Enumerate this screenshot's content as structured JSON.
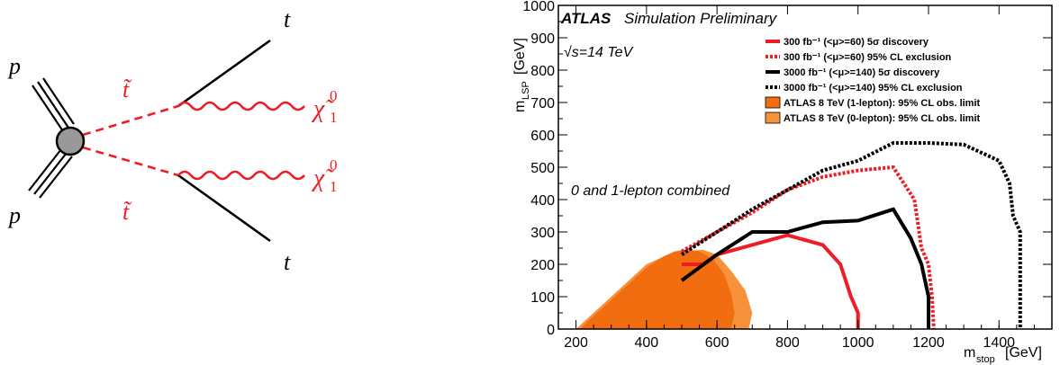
{
  "feynman": {
    "labels": {
      "p_top": "p",
      "p_bottom": "p",
      "stop_top": "t̃",
      "stop_bottom": "t̃",
      "top_top": "t",
      "top_bottom": "t",
      "chi": "χ̃",
      "chi_sup": "0",
      "chi_sub": "1"
    },
    "colors": {
      "black": "#000000",
      "red": "#ee1c24",
      "blob": "#999999"
    }
  },
  "chart_data": {
    "type": "line",
    "title": "ATLAS",
    "title_suffix": "Simulation Preliminary",
    "energy_label": "√s=14 TeV",
    "annotation": "0 and 1-lepton combined",
    "xlabel": "m",
    "xlabel_sub": "stop",
    "xlabel_unit": "[GeV]",
    "ylabel": "m",
    "ylabel_sub": "LSP",
    "ylabel_unit": "[GeV]",
    "xlim": [
      150,
      1550
    ],
    "ylim": [
      0,
      1000
    ],
    "x_ticks": [
      200,
      400,
      600,
      800,
      1000,
      1200,
      1400
    ],
    "y_ticks": [
      0,
      100,
      200,
      300,
      400,
      500,
      600,
      700,
      800,
      900,
      1000
    ],
    "legend_position": "top-right",
    "legend": [
      "300 fb⁻¹ (<μ>=60) 5σ discovery",
      "300 fb⁻¹ (<μ>=60) 95% CL exclusion",
      "3000 fb⁻¹ (<μ>=140) 5σ discovery",
      "3000 fb⁻¹ (<μ>=140) 95% CL exclusion",
      "ATLAS 8 TeV (1-lepton): 95% CL obs. limit",
      "ATLAS 8 TeV (0-lepton): 95% CL obs. limit"
    ],
    "series": [
      {
        "name": "300 fb⁻¹ (<μ>=60) 5σ discovery",
        "color": "#ee1c24",
        "style": "solid",
        "x": [
          500,
          560,
          600,
          700,
          800,
          900,
          950,
          980,
          1000,
          1000
        ],
        "y": [
          200,
          200,
          230,
          260,
          290,
          260,
          200,
          100,
          50,
          0
        ]
      },
      {
        "name": "300 fb⁻¹ (<μ>=60) 95% CL exclusion",
        "color": "#ee1c24",
        "style": "dotted",
        "x": [
          500,
          550,
          700,
          800,
          900,
          1000,
          1100,
          1160,
          1180,
          1200,
          1210,
          1215
        ],
        "y": [
          240,
          270,
          360,
          430,
          470,
          490,
          500,
          400,
          250,
          200,
          100,
          0
        ]
      },
      {
        "name": "3000 fb⁻¹ (<μ>=140) 5σ discovery",
        "color": "#000000",
        "style": "solid",
        "x": [
          500,
          600,
          700,
          800,
          900,
          1000,
          1100,
          1150,
          1180,
          1200,
          1200
        ],
        "y": [
          150,
          230,
          300,
          300,
          330,
          335,
          370,
          280,
          200,
          100,
          0
        ]
      },
      {
        "name": "3000 fb⁻¹ (<μ>=140) 95% CL exclusion",
        "color": "#000000",
        "style": "dotted",
        "x": [
          500,
          600,
          700,
          800,
          900,
          1000,
          1100,
          1200,
          1300,
          1400,
          1430,
          1440,
          1460,
          1460
        ],
        "y": [
          230,
          300,
          370,
          430,
          490,
          520,
          575,
          575,
          570,
          520,
          450,
          350,
          300,
          0
        ]
      }
    ],
    "areas": [
      {
        "name": "ATLAS 8 TeV (0-lepton): 95% CL obs. limit",
        "color": "#f7923a",
        "x": [
          200,
          250,
          300,
          350,
          400,
          460,
          500,
          560,
          600,
          640,
          680,
          700,
          690,
          650,
          600,
          560,
          500,
          450,
          400,
          350,
          300,
          250,
          200
        ],
        "y": [
          0,
          50,
          100,
          150,
          200,
          230,
          240,
          245,
          230,
          180,
          120,
          50,
          0,
          0,
          0,
          0,
          0,
          0,
          0,
          0,
          0,
          0,
          0
        ]
      },
      {
        "name": "ATLAS 8 TeV (1-lepton): 95% CL obs. limit",
        "color": "#f26d10",
        "x": [
          210,
          250,
          300,
          350,
          400,
          450,
          480,
          510,
          550,
          590,
          620,
          640,
          650,
          640,
          600,
          500,
          400,
          300,
          210
        ],
        "y": [
          0,
          40,
          90,
          140,
          190,
          225,
          240,
          245,
          240,
          215,
          170,
          110,
          50,
          0,
          0,
          0,
          0,
          0,
          0
        ]
      }
    ]
  }
}
